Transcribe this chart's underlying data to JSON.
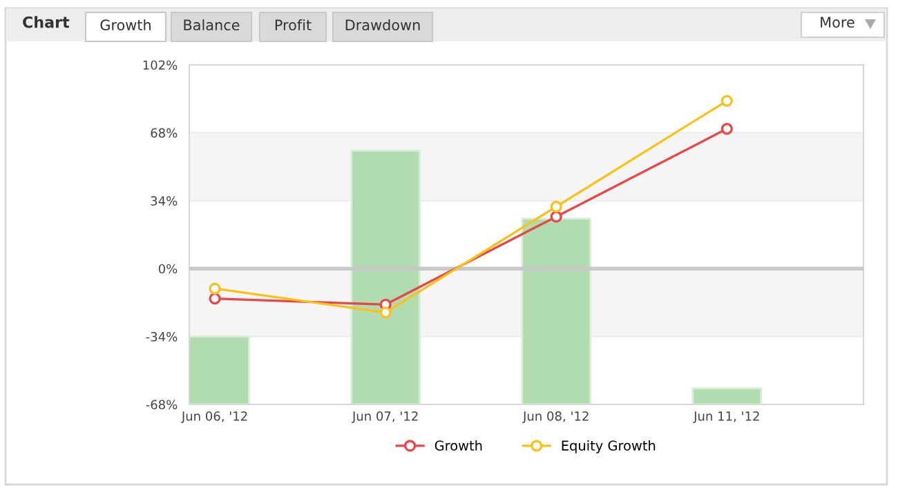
{
  "chart_data": {
    "type": "bar",
    "title": "Chart",
    "annotations": [
      "Growth",
      "Balance",
      "Profit",
      "Drawdown",
      "More"
    ],
    "categories": [
      "Jun 06, '12",
      "Jun 07, '12",
      "Jun 08, '12",
      "Jun 11, '12"
    ],
    "series": [
      {
        "color": "#b0dcb0",
        "base": [
          -68,
          -68,
          -68,
          -68
        ],
        "values": [
          34,
          127,
          93,
          8
        ]
      },
      {
        "type": "line",
        "name": "Growth",
        "color": "#e8474a",
        "values": [
          -15,
          -18,
          26,
          70
        ]
      },
      {
        "type": "line",
        "name": "Equity Growth",
        "color": "#f7c21c",
        "values": [
          -10,
          -22,
          31,
          84
        ]
      }
    ],
    "ylim": [
      -68,
      102
    ],
    "yticks": [
      {
        "value": -68,
        "label": "-68%"
      },
      {
        "value": -34,
        "label": "-34%"
      },
      {
        "value": 0,
        "label": "0%"
      },
      {
        "value": 34,
        "label": "34%"
      },
      {
        "value": 68,
        "label": "68%"
      },
      {
        "value": 102,
        "label": "102%"
      }
    ],
    "bands": [
      {
        "axis": "y",
        "from": -34,
        "to": 0,
        "color": "#f5f5f5"
      },
      {
        "axis": "y",
        "from": 34,
        "to": 68,
        "color": "#f5f5f5"
      }
    ],
    "ref_lines": [
      {
        "axis": "y",
        "value": 0,
        "color": "#c8c8c8"
      }
    ],
    "grid": "y",
    "legend": "bottom",
    "marker": "circle",
    "line_style": "solid"
  }
}
